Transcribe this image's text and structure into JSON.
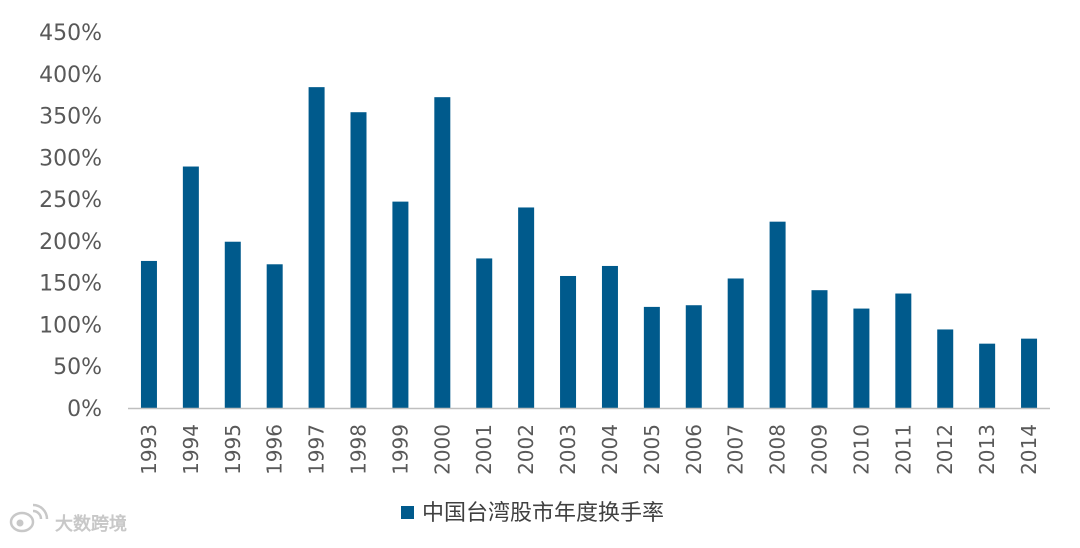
{
  "chart_data": {
    "type": "bar",
    "categories": [
      "1993",
      "1994",
      "1995",
      "1996",
      "1997",
      "1998",
      "1999",
      "2000",
      "2001",
      "2002",
      "2003",
      "2004",
      "2005",
      "2006",
      "2007",
      "2008",
      "2009",
      "2010",
      "2011",
      "2012",
      "2013",
      "2014"
    ],
    "series": [
      {
        "name": "中国台湾股市年度换手率",
        "values": [
          176,
          289,
          199,
          172,
          384,
          354,
          247,
          372,
          179,
          240,
          158,
          170,
          121,
          123,
          155,
          223,
          141,
          119,
          137,
          94,
          77,
          83
        ],
        "color": "#005a8c"
      }
    ],
    "y_tick_labels": [
      "0%",
      "50%",
      "100%",
      "150%",
      "200%",
      "250%",
      "300%",
      "350%",
      "400%",
      "450%"
    ],
    "ylim": [
      0,
      450
    ],
    "y_unit": "%",
    "grid": false,
    "legend_position": "bottom",
    "axis_color": "#bfbfbf"
  },
  "watermark": {
    "text": "大数跨境",
    "icon": "weibo-logo-icon"
  }
}
